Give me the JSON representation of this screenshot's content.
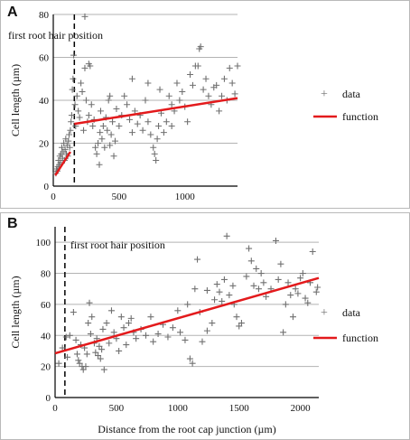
{
  "colors": {
    "data_marker": "#707070",
    "function_line": "#e31a1c",
    "grid": "#b3b3b3",
    "axis": "#000000"
  },
  "chart_data": [
    {
      "panel": "A",
      "type": "scatter",
      "ylabel": "Cell length (µm)",
      "xlabel": "",
      "xlim": [
        0,
        1400
      ],
      "ylim": [
        0,
        80
      ],
      "x_ticks": [
        0,
        500,
        1000
      ],
      "y_ticks": [
        0,
        20,
        40,
        60,
        80
      ],
      "grid": "horizontal",
      "legend": "right",
      "vline": {
        "x": 160,
        "label": "first root hair position"
      },
      "series": [
        {
          "name": "data",
          "kind": "marker",
          "points": [
            [
              20,
              6
            ],
            [
              25,
              8
            ],
            [
              30,
              7
            ],
            [
              35,
              9
            ],
            [
              40,
              12
            ],
            [
              45,
              10
            ],
            [
              50,
              14
            ],
            [
              55,
              11
            ],
            [
              60,
              15
            ],
            [
              65,
              18
            ],
            [
              70,
              13
            ],
            [
              75,
              16
            ],
            [
              80,
              20
            ],
            [
              85,
              12
            ],
            [
              90,
              17
            ],
            [
              95,
              22
            ],
            [
              100,
              15
            ],
            [
              105,
              19
            ],
            [
              110,
              14
            ],
            [
              115,
              21
            ],
            [
              120,
              24
            ],
            [
              125,
              18
            ],
            [
              130,
              26
            ],
            [
              135,
              30
            ],
            [
              140,
              33
            ],
            [
              145,
              45
            ],
            [
              150,
              50
            ],
            [
              155,
              61
            ],
            [
              165,
              38
            ],
            [
              170,
              28
            ],
            [
              180,
              42
            ],
            [
              190,
              35
            ],
            [
              200,
              32
            ],
            [
              210,
              48
            ],
            [
              220,
              44
            ],
            [
              230,
              26
            ],
            [
              240,
              55
            ],
            [
              250,
              40
            ],
            [
              260,
              30
            ],
            [
              270,
              33
            ],
            [
              280,
              56
            ],
            [
              290,
              38
            ],
            [
              300,
              28
            ],
            [
              310,
              31
            ],
            [
              320,
              18
            ],
            [
              330,
              15
            ],
            [
              340,
              20
            ],
            [
              350,
              10
            ],
            [
              355,
              25
            ],
            [
              360,
              35
            ],
            [
              370,
              22
            ],
            [
              380,
              28
            ],
            [
              390,
              18
            ],
            [
              400,
              32
            ],
            [
              410,
              26
            ],
            [
              420,
              40
            ],
            [
              430,
              19
            ],
            [
              440,
              24
            ],
            [
              450,
              30
            ],
            [
              460,
              14
            ],
            [
              470,
              21
            ],
            [
              480,
              36
            ],
            [
              500,
              28
            ],
            [
              520,
              33
            ],
            [
              540,
              42
            ],
            [
              560,
              38
            ],
            [
              580,
              31
            ],
            [
              600,
              25
            ],
            [
              620,
              35
            ],
            [
              640,
              29
            ],
            [
              660,
              33
            ],
            [
              680,
              26
            ],
            [
              700,
              40
            ],
            [
              720,
              30
            ],
            [
              740,
              24
            ],
            [
              760,
              18
            ],
            [
              770,
              15
            ],
            [
              780,
              12
            ],
            [
              790,
              22
            ],
            [
              800,
              28
            ],
            [
              810,
              45
            ],
            [
              820,
              34
            ],
            [
              840,
              25
            ],
            [
              860,
              30
            ],
            [
              880,
              42
            ],
            [
              900,
              38
            ],
            [
              920,
              35
            ],
            [
              940,
              48
            ],
            [
              960,
              40
            ],
            [
              980,
              44
            ],
            [
              1000,
              37
            ],
            [
              1020,
              30
            ],
            [
              1040,
              52
            ],
            [
              1060,
              47
            ],
            [
              1080,
              56
            ],
            [
              1100,
              56
            ],
            [
              1110,
              64
            ],
            [
              1120,
              65
            ],
            [
              1140,
              45
            ],
            [
              1160,
              50
            ],
            [
              1180,
              42
            ],
            [
              1200,
              38
            ],
            [
              1220,
              46
            ],
            [
              1240,
              47
            ],
            [
              1260,
              35
            ],
            [
              1280,
              42
            ],
            [
              1300,
              50
            ],
            [
              1320,
              40
            ],
            [
              1340,
              55
            ],
            [
              1360,
              48
            ],
            [
              1380,
              43
            ],
            [
              1400,
              56
            ],
            [
              240,
              79
            ],
            [
              270,
              57
            ],
            [
              430,
              42
            ],
            [
              600,
              50
            ],
            [
              720,
              48
            ],
            [
              900,
              28
            ]
          ]
        },
        {
          "name": "function",
          "kind": "line",
          "segments": [
            [
              [
                15,
                5
              ],
              [
                130,
                16
              ]
            ],
            [
              [
                160,
                29
              ],
              [
                1400,
                41
              ]
            ]
          ]
        }
      ]
    },
    {
      "panel": "B",
      "type": "scatter",
      "ylabel": "Cell length (µm)",
      "xlabel": "Distance from the root cap junction (µm)",
      "xlim": [
        0,
        2150
      ],
      "ylim": [
        0,
        110
      ],
      "x_ticks": [
        0,
        500,
        1000,
        1500,
        2000
      ],
      "y_ticks": [
        0,
        20,
        40,
        60,
        80,
        100
      ],
      "grid": "horizontal",
      "legend": "right",
      "vline": {
        "x": 80,
        "label": "first root hair position"
      },
      "series": [
        {
          "name": "data",
          "kind": "marker",
          "points": [
            [
              30,
              22
            ],
            [
              60,
              32
            ],
            [
              90,
              39
            ],
            [
              100,
              26
            ],
            [
              120,
              40
            ],
            [
              150,
              55
            ],
            [
              170,
              37
            ],
            [
              180,
              28
            ],
            [
              190,
              24
            ],
            [
              200,
              22
            ],
            [
              210,
              34
            ],
            [
              220,
              20
            ],
            [
              230,
              18
            ],
            [
              240,
              32
            ],
            [
              250,
              20
            ],
            [
              260,
              28
            ],
            [
              270,
              48
            ],
            [
              280,
              61
            ],
            [
              290,
              41
            ],
            [
              300,
              52
            ],
            [
              320,
              35
            ],
            [
              330,
              29
            ],
            [
              340,
              38
            ],
            [
              350,
              27
            ],
            [
              360,
              33
            ],
            [
              370,
              25
            ],
            [
              380,
              31
            ],
            [
              390,
              44
            ],
            [
              400,
              18
            ],
            [
              420,
              48
            ],
            [
              440,
              35
            ],
            [
              460,
              56
            ],
            [
              480,
              42
            ],
            [
              500,
              38
            ],
            [
              520,
              30
            ],
            [
              540,
              52
            ],
            [
              560,
              45
            ],
            [
              580,
              34
            ],
            [
              600,
              48
            ],
            [
              620,
              51
            ],
            [
              640,
              42
            ],
            [
              660,
              38
            ],
            [
              700,
              44
            ],
            [
              740,
              40
            ],
            [
              780,
              52
            ],
            [
              800,
              36
            ],
            [
              840,
              41
            ],
            [
              880,
              47
            ],
            [
              920,
              39
            ],
            [
              960,
              45
            ],
            [
              1000,
              56
            ],
            [
              1020,
              42
            ],
            [
              1060,
              37
            ],
            [
              1080,
              60
            ],
            [
              1100,
              25
            ],
            [
              1120,
              22
            ],
            [
              1140,
              70
            ],
            [
              1160,
              89
            ],
            [
              1180,
              55
            ],
            [
              1200,
              36
            ],
            [
              1240,
              43
            ],
            [
              1280,
              48
            ],
            [
              1320,
              73
            ],
            [
              1340,
              68
            ],
            [
              1360,
              62
            ],
            [
              1380,
              76
            ],
            [
              1400,
              104
            ],
            [
              1420,
              66
            ],
            [
              1460,
              60
            ],
            [
              1480,
              52
            ],
            [
              1500,
              46
            ],
            [
              1520,
              48
            ],
            [
              1560,
              78
            ],
            [
              1580,
              96
            ],
            [
              1600,
              88
            ],
            [
              1620,
              72
            ],
            [
              1640,
              83
            ],
            [
              1660,
              70
            ],
            [
              1680,
              80
            ],
            [
              1720,
              65
            ],
            [
              1760,
              70
            ],
            [
              1800,
              101
            ],
            [
              1820,
              76
            ],
            [
              1840,
              86
            ],
            [
              1860,
              42
            ],
            [
              1880,
              60
            ],
            [
              1900,
              74
            ],
            [
              1920,
              66
            ],
            [
              1940,
              52
            ],
            [
              1960,
              70
            ],
            [
              1980,
              67
            ],
            [
              2000,
              77
            ],
            [
              2020,
              80
            ],
            [
              2040,
              64
            ],
            [
              2060,
              61
            ],
            [
              2080,
              74
            ],
            [
              2100,
              94
            ],
            [
              2130,
              68
            ],
            [
              2140,
              71
            ],
            [
              1450,
              72
            ],
            [
              1700,
              74
            ],
            [
              1300,
              63
            ],
            [
              1240,
              69
            ]
          ]
        },
        {
          "name": "function",
          "kind": "line",
          "segments": [
            [
              [
                0,
                28.5
              ],
              [
                2150,
                77
              ]
            ]
          ]
        }
      ]
    }
  ],
  "legend": {
    "data_label": "data",
    "function_label": "function"
  },
  "panels": [
    {
      "letter": "A"
    },
    {
      "letter": "B"
    }
  ]
}
